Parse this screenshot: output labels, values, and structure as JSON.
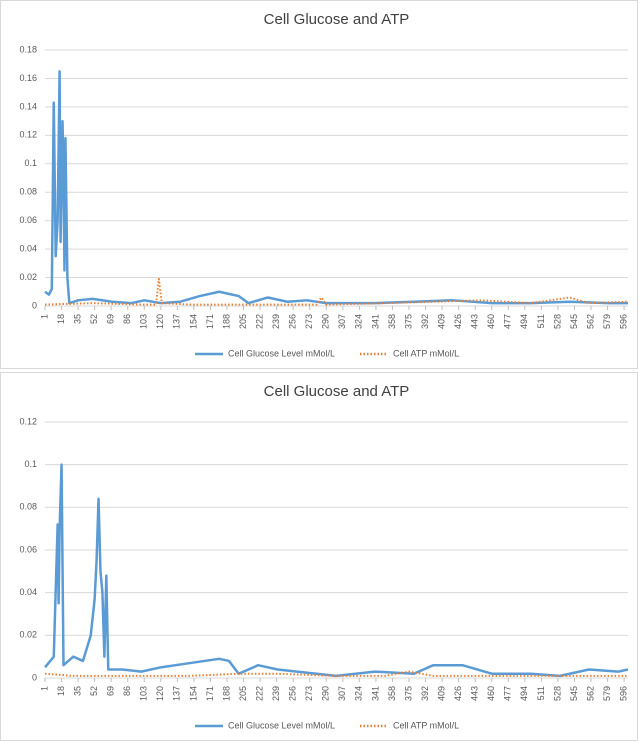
{
  "chart_data": [
    {
      "type": "line",
      "title": "Cell Glucose and ATP",
      "xlim": [
        1,
        600
      ],
      "xticks": [
        1,
        18,
        35,
        52,
        69,
        86,
        103,
        120,
        137,
        154,
        171,
        188,
        205,
        222,
        239,
        256,
        273,
        290,
        307,
        324,
        341,
        358,
        375,
        392,
        409,
        426,
        443,
        460,
        477,
        494,
        511,
        528,
        545,
        562,
        579,
        596
      ],
      "ylim": [
        0,
        0.18
      ],
      "yticks": [
        0,
        0.02,
        0.04,
        0.06,
        0.08,
        0.1,
        0.12,
        0.14,
        0.16,
        0.18
      ],
      "grid": true,
      "series": [
        {
          "name": "Cell Glucose Level mMol/L",
          "color": "#5b9bd5",
          "style": "solid",
          "x": [
            1,
            5,
            8,
            10,
            12,
            14,
            16,
            17,
            19,
            20,
            21,
            22,
            24,
            26,
            35,
            50,
            70,
            90,
            103,
            120,
            140,
            160,
            180,
            200,
            210,
            230,
            250,
            270,
            290,
            310,
            340,
            380,
            420,
            460,
            500,
            540,
            580,
            600
          ],
          "values": [
            0.01,
            0.008,
            0.012,
            0.143,
            0.035,
            0.06,
            0.165,
            0.045,
            0.13,
            0.09,
            0.025,
            0.118,
            0.02,
            0.002,
            0.004,
            0.005,
            0.003,
            0.002,
            0.004,
            0.002,
            0.003,
            0.007,
            0.01,
            0.007,
            0.002,
            0.006,
            0.003,
            0.004,
            0.002,
            0.002,
            0.002,
            0.003,
            0.004,
            0.002,
            0.002,
            0.003,
            0.002,
            0.002
          ]
        },
        {
          "name": "Cell ATP mMol/L",
          "color": "#ed7d31",
          "style": "dotted",
          "x": [
            1,
            50,
            100,
            115,
            118,
            121,
            150,
            200,
            280,
            285,
            290,
            350,
            400,
            450,
            500,
            540,
            560,
            600
          ],
          "values": [
            0.001,
            0.002,
            0.001,
            0.001,
            0.019,
            0.002,
            0.001,
            0.001,
            0.001,
            0.006,
            0.001,
            0.002,
            0.003,
            0.004,
            0.002,
            0.006,
            0.002,
            0.003
          ]
        }
      ]
    },
    {
      "type": "line",
      "title": "Cell Glucose and ATP",
      "xlim": [
        1,
        600
      ],
      "xticks": [
        1,
        18,
        35,
        52,
        69,
        86,
        103,
        120,
        137,
        154,
        171,
        188,
        205,
        222,
        239,
        256,
        273,
        290,
        307,
        324,
        341,
        358,
        375,
        392,
        409,
        426,
        443,
        460,
        477,
        494,
        511,
        528,
        545,
        562,
        579,
        596
      ],
      "ylim": [
        0,
        0.12
      ],
      "yticks": [
        0,
        0.02,
        0.04,
        0.06,
        0.08,
        0.1,
        0.12
      ],
      "grid": true,
      "series": [
        {
          "name": "Cell Glucose Level mMol/L",
          "color": "#5b9bd5",
          "style": "solid",
          "x": [
            1,
            10,
            14,
            15,
            16,
            18,
            20,
            30,
            40,
            48,
            52,
            54,
            56,
            58,
            60,
            62,
            64,
            66,
            80,
            100,
            120,
            150,
            180,
            190,
            200,
            220,
            240,
            260,
            280,
            300,
            340,
            380,
            400,
            430,
            460,
            500,
            530,
            560,
            590,
            600
          ],
          "values": [
            0.005,
            0.01,
            0.072,
            0.035,
            0.07,
            0.1,
            0.006,
            0.01,
            0.008,
            0.02,
            0.037,
            0.055,
            0.084,
            0.05,
            0.04,
            0.01,
            0.048,
            0.004,
            0.004,
            0.003,
            0.005,
            0.007,
            0.009,
            0.008,
            0.002,
            0.006,
            0.004,
            0.003,
            0.002,
            0.001,
            0.003,
            0.002,
            0.006,
            0.006,
            0.002,
            0.002,
            0.001,
            0.004,
            0.003,
            0.004
          ]
        },
        {
          "name": "Cell ATP mMol/L",
          "color": "#ed7d31",
          "style": "dotted",
          "x": [
            1,
            30,
            60,
            100,
            150,
            200,
            240,
            300,
            350,
            375,
            400,
            450,
            500,
            550,
            600
          ],
          "values": [
            0.002,
            0.001,
            0.001,
            0.001,
            0.001,
            0.002,
            0.002,
            0.001,
            0.001,
            0.003,
            0.001,
            0.001,
            0.001,
            0.001,
            0.001
          ]
        }
      ]
    }
  ]
}
